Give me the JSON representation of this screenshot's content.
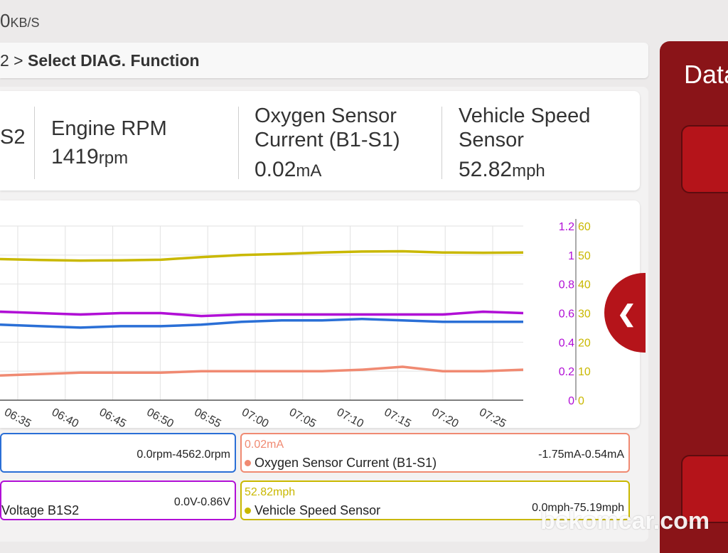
{
  "status": {
    "speed_value": "0",
    "speed_unit": "KB/S"
  },
  "breadcrumb": {
    "prefix": "2 > ",
    "current": "Select DIAG. Function"
  },
  "values": [
    {
      "name_line1": "S2",
      "name_line2": "",
      "value": "",
      "unit": ""
    },
    {
      "name_line1": "Engine RPM",
      "name_line2": "",
      "value": "1419",
      "unit": "rpm"
    },
    {
      "name_line1": "Oxygen Sensor",
      "name_line2": "Current (B1-S1)",
      "value": "0.02",
      "unit": "mA"
    },
    {
      "name_line1": "Vehicle Speed",
      "name_line2": "Sensor",
      "value": "52.82",
      "unit": "mph"
    }
  ],
  "side_panel": {
    "title": "Data"
  },
  "watermark": "bekomcar.com",
  "colors": {
    "yellow": "#c9b800",
    "purple": "#b10fd6",
    "blue": "#2a6fd6",
    "salmon": "#f08a72",
    "red": "#b5141a"
  },
  "legends": [
    {
      "current": "",
      "name": "",
      "range": "0.0rpm-4562.0rpm",
      "color": "#2a6fd6"
    },
    {
      "current": "0.02mA",
      "name": "Oxygen Sensor Current (B1-S1)",
      "range": "-1.75mA-0.54mA",
      "color": "#f08a72"
    },
    {
      "current": "",
      "name": "Voltage B1S2",
      "range": "0.0V-0.86V",
      "color": "#b10fd6"
    },
    {
      "current": "52.82mph",
      "name": "Vehicle Speed Sensor",
      "range": "0.0mph-75.19mph",
      "color": "#c9b800"
    }
  ],
  "chart_data": {
    "type": "line",
    "x_ticks": [
      "06:35",
      "06:40",
      "06:45",
      "06:50",
      "06:55",
      "07:00",
      "07:05",
      "07:10",
      "07:15",
      "07:20",
      "07:25"
    ],
    "y_left_ticks": [
      "1.2",
      "1",
      "0.8",
      "0.6",
      "0.4",
      "0.2",
      "0"
    ],
    "y_right_ticks": [
      "60",
      "50",
      "40",
      "30",
      "20",
      "10",
      "0"
    ],
    "ylim_left": [
      0,
      1.2
    ],
    "ylim_right": [
      0,
      60
    ],
    "grid": true,
    "series": [
      {
        "name": "Vehicle Speed Sensor",
        "axis": "right",
        "color": "#c9b800",
        "values": [
          48.6,
          48.3,
          48.1,
          48.2,
          48.4,
          49.3,
          50.0,
          50.4,
          50.9,
          51.2,
          51.3,
          50.9,
          50.8,
          50.9
        ]
      },
      {
        "name": "Voltage B1S2",
        "axis": "left",
        "color": "#b10fd6",
        "values": [
          0.61,
          0.6,
          0.59,
          0.6,
          0.6,
          0.58,
          0.59,
          0.59,
          0.59,
          0.59,
          0.59,
          0.59,
          0.61,
          0.6
        ]
      },
      {
        "name": "Engine RPM",
        "axis": "left",
        "color": "#2a6fd6",
        "values": [
          0.52,
          0.51,
          0.5,
          0.51,
          0.51,
          0.52,
          0.54,
          0.55,
          0.55,
          0.56,
          0.55,
          0.54,
          0.54,
          0.54
        ]
      },
      {
        "name": "Oxygen Sensor Current (B1-S1)",
        "axis": "left",
        "color": "#f08a72",
        "values": [
          0.17,
          0.18,
          0.19,
          0.19,
          0.19,
          0.2,
          0.2,
          0.2,
          0.2,
          0.21,
          0.23,
          0.2,
          0.2,
          0.21
        ]
      }
    ]
  }
}
